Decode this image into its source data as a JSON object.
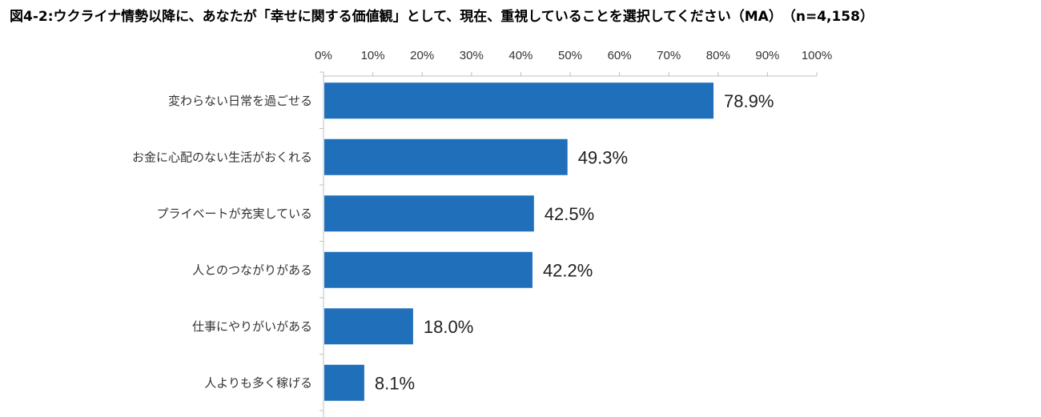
{
  "chart_data": {
    "type": "bar",
    "orientation": "horizontal",
    "title": "図4-2:ウクライナ情勢以降に、あなたが「幸せに関する価値観」として、現在、重視していることを選択してください（MA）　（n=4,158）",
    "categories": [
      "変わらない日常を過ごせる",
      "お金に心配のない生活がおくれる",
      "プライベートが充実している",
      "人とのつながりがある",
      "仕事にやりがいがある",
      "人よりも多く稼げる"
    ],
    "values": [
      78.9,
      49.3,
      42.5,
      42.2,
      18.0,
      8.1
    ],
    "data_labels": [
      "78.9%",
      "49.3%",
      "42.5%",
      "42.2%",
      "18.0%",
      "8.1%"
    ],
    "xlim": [
      0,
      100
    ],
    "x_ticks": [
      "0%",
      "10%",
      "20%",
      "30%",
      "40%",
      "50%",
      "60%",
      "70%",
      "80%",
      "90%",
      "100%"
    ],
    "axis_position": "top",
    "grid": false,
    "bar_color": "#1f6fba"
  }
}
